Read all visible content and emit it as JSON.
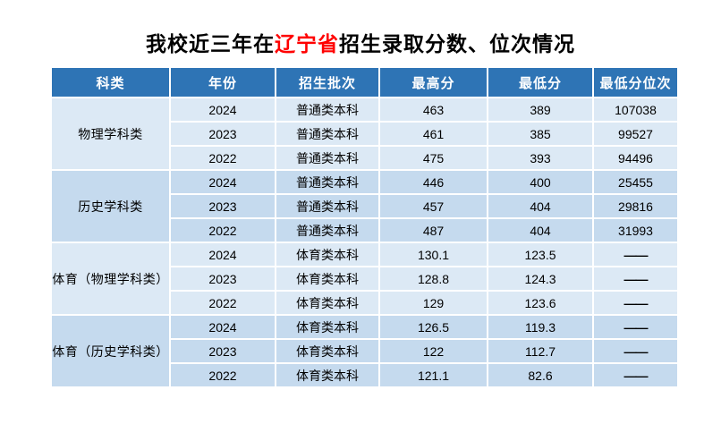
{
  "title": {
    "prefix": "我校近三年在",
    "highlight": "辽宁省",
    "suffix": "招生录取分数、位次情况"
  },
  "colors": {
    "header_bg": "#2e74b5",
    "header_text": "#ffffff",
    "row_light": "#dce9f5",
    "row_dark": "#c5daee",
    "highlight": "#ff0000",
    "title_text": "#000000"
  },
  "table": {
    "headers": [
      "科类",
      "年份",
      "招生批次",
      "最高分",
      "最低分",
      "最低分位次"
    ],
    "groups": [
      {
        "category": "物理学科类",
        "shade": "light",
        "rows": [
          [
            "2024",
            "普通类本科",
            "463",
            "389",
            "107038"
          ],
          [
            "2023",
            "普通类本科",
            "461",
            "385",
            "99527"
          ],
          [
            "2022",
            "普通类本科",
            "475",
            "393",
            "94496"
          ]
        ]
      },
      {
        "category": "历史学科类",
        "shade": "dark",
        "rows": [
          [
            "2024",
            "普通类本科",
            "446",
            "400",
            "25455"
          ],
          [
            "2023",
            "普通类本科",
            "457",
            "404",
            "29816"
          ],
          [
            "2022",
            "普通类本科",
            "487",
            "404",
            "31993"
          ]
        ]
      },
      {
        "category": "体育（物理学科类）",
        "shade": "light",
        "rows": [
          [
            "2024",
            "体育类本科",
            "130.1",
            "123.5",
            "——"
          ],
          [
            "2023",
            "体育类本科",
            "128.8",
            "124.3",
            "——"
          ],
          [
            "2022",
            "体育类本科",
            "129",
            "123.6",
            "——"
          ]
        ]
      },
      {
        "category": "体育（历史学科类）",
        "shade": "dark",
        "rows": [
          [
            "2024",
            "体育类本科",
            "126.5",
            "119.3",
            "——"
          ],
          [
            "2023",
            "体育类本科",
            "122",
            "112.7",
            "——"
          ],
          [
            "2022",
            "体育类本科",
            "121.1",
            "82.6",
            "——"
          ]
        ]
      }
    ]
  }
}
